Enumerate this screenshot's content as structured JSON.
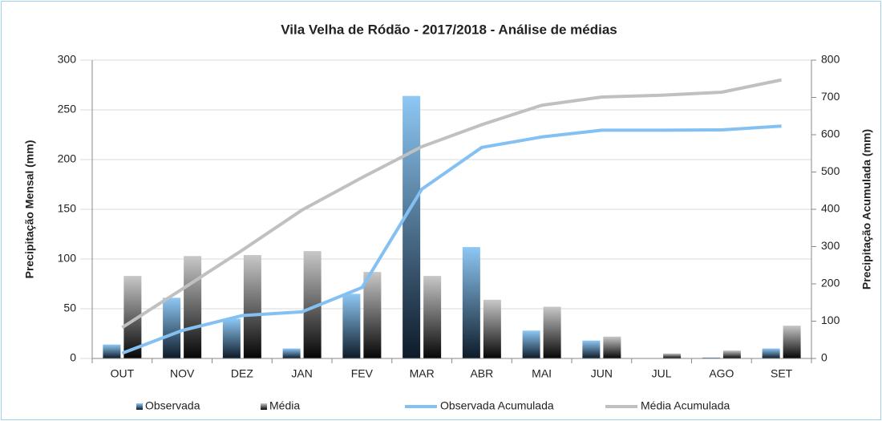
{
  "chart_data": {
    "type": "bar_line",
    "title": "Vila Velha de Ródão - 2017/2018 - Análise de médias",
    "y_label": "Precipitação Mensal (mm)",
    "y2_label": "Precipitação Acumulada (mm)",
    "categories": [
      "OUT",
      "NOV",
      "DEZ",
      "JAN",
      "FEV",
      "MAR",
      "ABR",
      "MAI",
      "JUN",
      "JUL",
      "AGO",
      "SET"
    ],
    "series": [
      {
        "name": "Observada",
        "kind": "bar",
        "color": "#8ec8f5",
        "values": [
          14,
          61,
          40,
          10,
          65,
          264,
          112,
          28,
          18,
          0,
          1,
          10
        ]
      },
      {
        "name": "Média",
        "kind": "bar",
        "color": "#c8c8c8",
        "values": [
          83,
          103,
          104,
          108,
          87,
          83,
          59,
          52,
          22,
          5,
          8,
          33
        ]
      },
      {
        "name": "Observada Acumulada",
        "kind": "line",
        "axis": "y2",
        "color": "#84c1f2",
        "values": [
          14,
          75,
          115,
          125,
          190,
          454,
          566,
          594,
          612,
          612,
          613,
          623
        ]
      },
      {
        "name": "Média Acumulada",
        "kind": "line",
        "axis": "y2",
        "color": "#c0c0c0",
        "values": [
          83,
          186,
          290,
          398,
          485,
          568,
          627,
          679,
          701,
          706,
          714,
          747
        ]
      }
    ],
    "ylim": [
      0,
      300
    ],
    "yticks": [
      0,
      50,
      100,
      150,
      200,
      250,
      300
    ],
    "y2lim": [
      0,
      800
    ],
    "y2ticks": [
      0,
      100,
      200,
      300,
      400,
      500,
      600,
      700,
      800
    ],
    "grid": true,
    "legend": "bottom"
  }
}
